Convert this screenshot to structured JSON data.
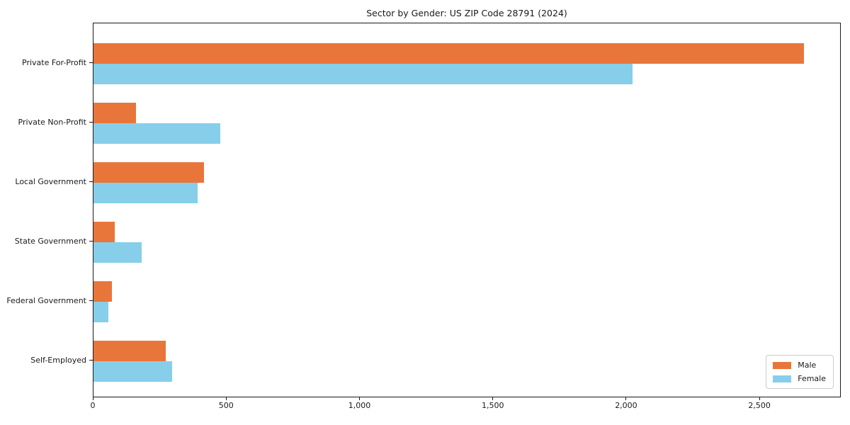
{
  "chart_data": {
    "type": "bar",
    "orientation": "horizontal",
    "title": "Sector by Gender: US ZIP Code 28791 (2024)",
    "categories": [
      "Private For-Profit",
      "Private Non-Profit",
      "Local Government",
      "State Government",
      "Federal Government",
      "Self-Employed"
    ],
    "series": [
      {
        "name": "Male",
        "color": "#e8763b",
        "values": [
          2665,
          160,
          415,
          80,
          70,
          270
        ]
      },
      {
        "name": "Female",
        "color": "#87ceeb",
        "values": [
          2020,
          475,
          390,
          180,
          55,
          295
        ]
      }
    ],
    "xlim": [
      0,
      2805
    ],
    "xticks": [
      0,
      500,
      1000,
      1500,
      2000,
      2500
    ],
    "xtick_labels": [
      "0",
      "500",
      "1,000",
      "1,500",
      "2,000",
      "2,500"
    ],
    "ylabel": "",
    "xlabel": "",
    "grid": false,
    "legend": {
      "position": "lower-right",
      "entries": [
        "Male",
        "Female"
      ]
    },
    "colors": {
      "background": "#ffffff",
      "spine": "#1a1a1a",
      "text": "#1a1a1a"
    }
  }
}
